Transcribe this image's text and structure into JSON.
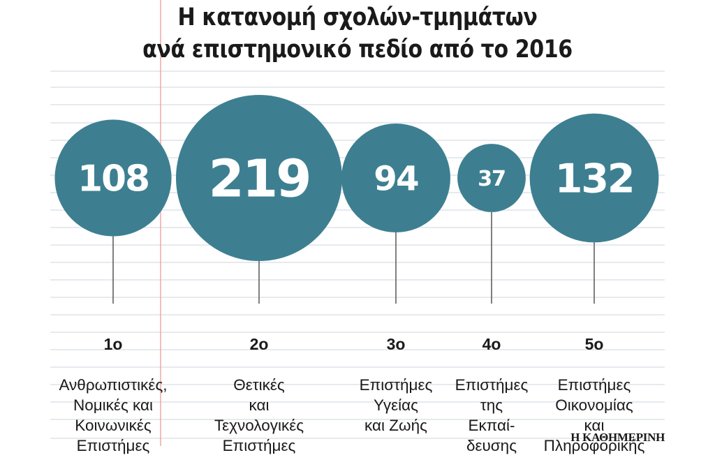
{
  "title": {
    "line1": "Η κατανομή σχολών-τμημάτων",
    "line2": "ανά επιστημονικό πεδίο από το 2016"
  },
  "source": "Η ΚΑΘΗΜΕΡΙΝΗ",
  "colors": {
    "bubble": "#3d7f91",
    "bubble_text": "#ffffff",
    "grid": "#dde3ea",
    "margin_line": "#f2a6a6",
    "stem": "#555555"
  },
  "chart_data": {
    "type": "bubble",
    "title": "Η κατανομή σχολών-τμημάτων ανά επιστημονικό πεδίο από το 2016",
    "grid": true,
    "categories": [
      {
        "rank": "1ο",
        "name": "Ανθρωπιστικές,\nΝομικές και\nΚοινωνικές\nΕπιστήμες",
        "value": 108
      },
      {
        "rank": "2ο",
        "name": "Θετικές\nκαι\nΤεχνολογικές\nΕπιστήμες",
        "value": 219
      },
      {
        "rank": "3ο",
        "name": "Επιστήμες\nΥγείας\nκαι Ζωής",
        "value": 94
      },
      {
        "rank": "4ο",
        "name": "Επιστήμες\nτης\nΕκπαί-\nδευσης",
        "value": 37
      },
      {
        "rank": "5ο",
        "name": "Επιστήμες\nΟικονομίας\nκαι\nΠληροφορικής",
        "value": 132
      }
    ]
  }
}
